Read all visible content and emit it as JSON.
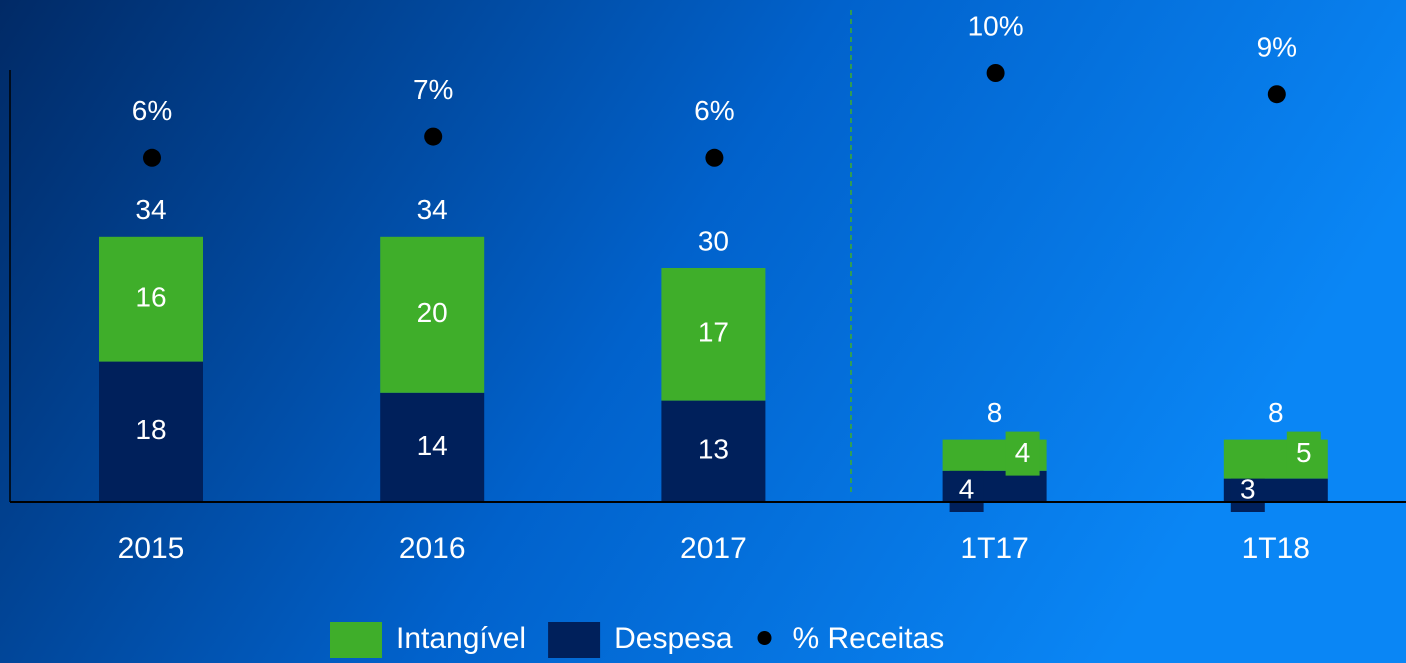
{
  "chart_data": {
    "type": "bar",
    "categories": [
      "2015",
      "2016",
      "2017",
      "1T17",
      "1T18"
    ],
    "series": [
      {
        "name": "Intangível",
        "color": "#3fae2a",
        "values": [
          16,
          20,
          17,
          4,
          5
        ]
      },
      {
        "name": "Despesa",
        "color": "#00205b",
        "values": [
          18,
          14,
          13,
          4,
          3
        ]
      }
    ],
    "totals": [
      34,
      34,
      30,
      8,
      8
    ],
    "points": {
      "name": "% Receitas",
      "color": "#000000",
      "values": [
        6,
        7,
        6,
        10,
        9
      ],
      "value_labels": [
        "6%",
        "7%",
        "6%",
        "10%",
        "9%"
      ]
    },
    "legend": "bottom"
  }
}
